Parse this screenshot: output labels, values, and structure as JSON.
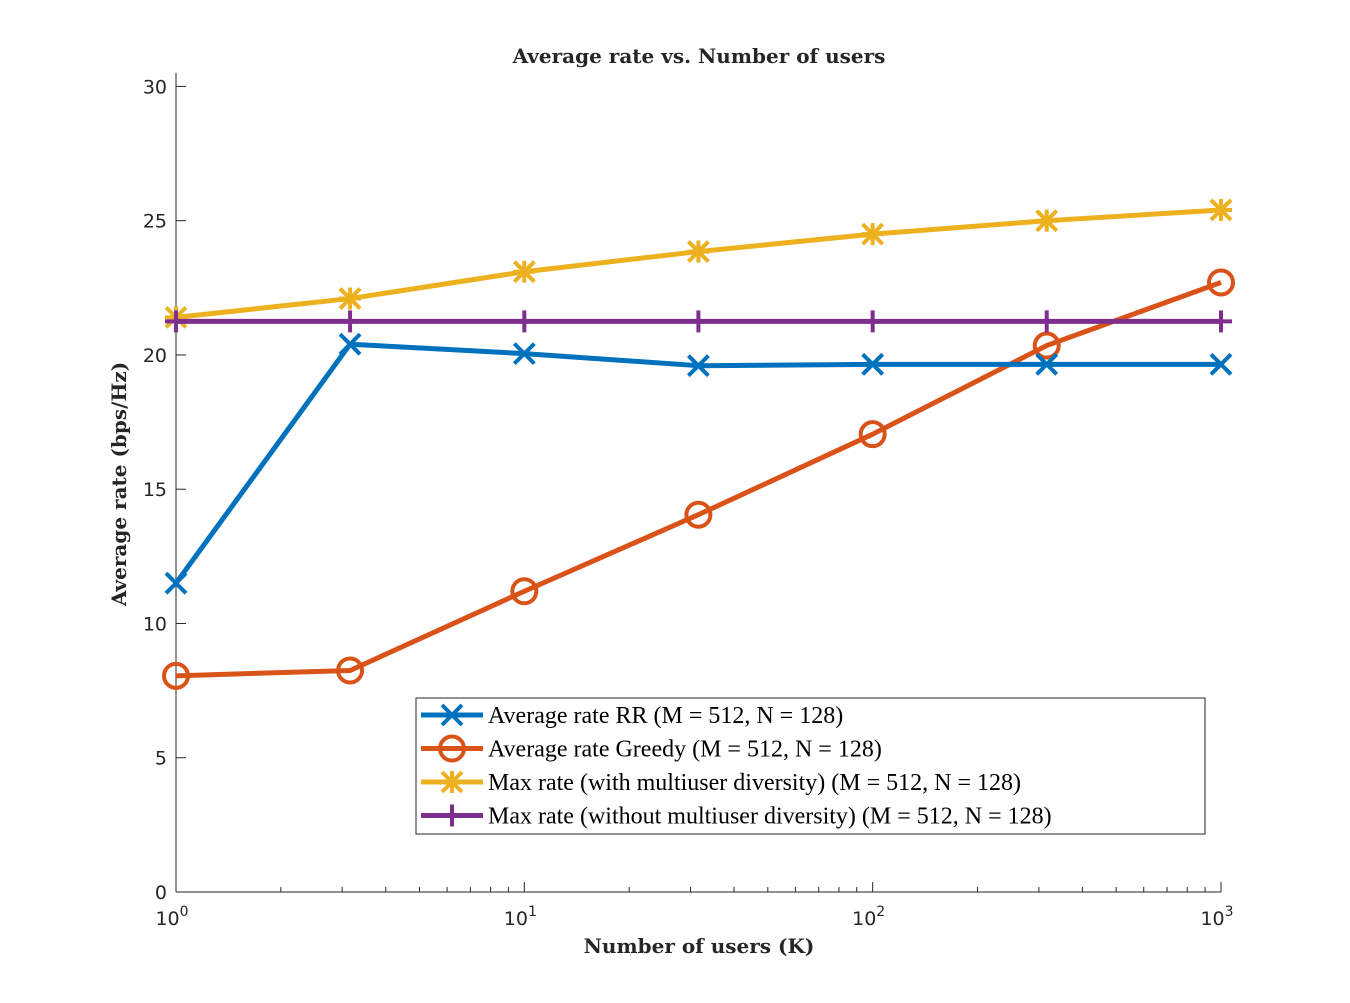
{
  "chart_data": {
    "type": "line",
    "title": "Average rate vs.  Number of users",
    "xlabel": "Number of users (K)",
    "ylabel": "Average rate (bps/Hz)",
    "x_scale": "log",
    "xlim": [
      1,
      1000
    ],
    "ylim": [
      0,
      30.5
    ],
    "x_ticks": [
      {
        "value": 1,
        "base": "10",
        "exp": "0"
      },
      {
        "value": 10,
        "base": "10",
        "exp": "1"
      },
      {
        "value": 100,
        "base": "10",
        "exp": "2"
      },
      {
        "value": 1000,
        "base": "10",
        "exp": "3"
      }
    ],
    "y_ticks": [
      {
        "value": 0,
        "label": "0"
      },
      {
        "value": 5,
        "label": "5"
      },
      {
        "value": 10,
        "label": "10"
      },
      {
        "value": 15,
        "label": "15"
      },
      {
        "value": 20,
        "label": "20"
      },
      {
        "value": 25,
        "label": "25"
      },
      {
        "value": 30,
        "label": "30"
      }
    ],
    "grid": false,
    "legend_position": "bottom-right",
    "x": [
      1,
      3.16,
      10,
      31.6,
      100,
      316,
      1000
    ],
    "series": [
      {
        "name": "Average rate RR (M = 512, N = 128)",
        "marker": "x",
        "color": "#0072BD",
        "values": [
          11.5,
          20.4,
          20.05,
          19.6,
          19.65,
          19.65,
          19.65
        ]
      },
      {
        "name": "Average rate Greedy (M = 512, N = 128)",
        "marker": "o",
        "color": "#D95319",
        "values": [
          8.05,
          8.25,
          11.2,
          14.05,
          17.05,
          20.35,
          22.7
        ]
      },
      {
        "name": "Max rate (with multiuser diversity) (M = 512, N = 128)",
        "marker": "*",
        "color": "#EDB120",
        "values": [
          21.4,
          22.1,
          23.1,
          23.85,
          24.5,
          25.0,
          25.4
        ]
      },
      {
        "name": "Max rate (without multiuser diversity) (M = 512, N = 128)",
        "marker": "+",
        "color": "#7E2F8E",
        "values": [
          21.25,
          21.25,
          21.25,
          21.25,
          21.25,
          21.25,
          21.25
        ]
      }
    ]
  }
}
